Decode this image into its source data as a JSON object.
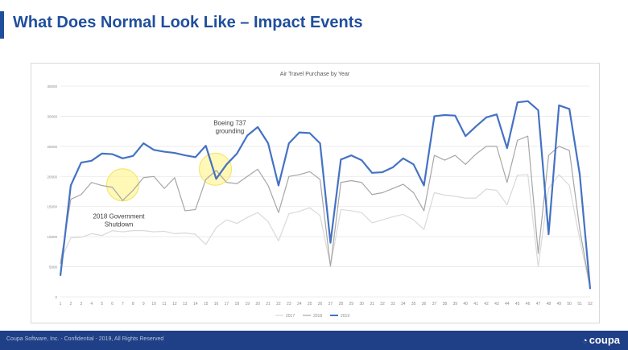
{
  "slide": {
    "title": "What Does Normal Look Like – Impact Events"
  },
  "footer": {
    "text": "Coupa Software, Inc. - Confidential - 2019, All Rights Reserved",
    "logo": "coupa"
  },
  "colors": {
    "accent": "#1f4e9c",
    "footer_bg": "#1f3f86",
    "highlight": "#fff27a"
  },
  "chart_data": {
    "type": "line",
    "title": "Air Travel Purchase by Year",
    "xlabel": "",
    "ylabel": "",
    "x": [
      1,
      2,
      3,
      4,
      5,
      6,
      7,
      8,
      9,
      10,
      11,
      12,
      13,
      14,
      15,
      16,
      17,
      18,
      19,
      20,
      21,
      22,
      23,
      24,
      25,
      26,
      27,
      28,
      29,
      30,
      31,
      32,
      33,
      34,
      35,
      36,
      37,
      38,
      39,
      40,
      41,
      42,
      43,
      44,
      45,
      46,
      47,
      48,
      49,
      50,
      51,
      52
    ],
    "ylim": [
      0,
      35000
    ],
    "yticks": [
      0,
      5000,
      10000,
      15000,
      20000,
      25000,
      30000,
      35000
    ],
    "grid": true,
    "legend": "bottom",
    "series": [
      {
        "name": "2017",
        "color": "#d9d9d9",
        "values": [
          6000,
          9800,
          9900,
          10500,
          10200,
          11000,
          10800,
          11000,
          11000,
          10800,
          10900,
          10500,
          10600,
          10400,
          8700,
          11500,
          12800,
          12200,
          13200,
          14000,
          12500,
          9300,
          13800,
          14200,
          14800,
          13500,
          5200,
          14500,
          14300,
          14000,
          12300,
          12800,
          13300,
          13700,
          12800,
          11200,
          17300,
          16900,
          16700,
          16400,
          16400,
          17900,
          17700,
          15300,
          20200,
          20300,
          5000,
          18000,
          20300,
          18500,
          9500,
          1400
        ]
      },
      {
        "name": "2018",
        "color": "#a6a6a6",
        "values": [
          5500,
          16200,
          17000,
          19000,
          18500,
          18200,
          16000,
          17700,
          19800,
          20000,
          18000,
          19800,
          14300,
          14500,
          19500,
          21000,
          19000,
          18800,
          20000,
          21200,
          18500,
          14000,
          20000,
          20300,
          20800,
          19500,
          5100,
          19000,
          19300,
          19000,
          17000,
          17300,
          18000,
          18700,
          17300,
          14300,
          23500,
          22700,
          23500,
          22000,
          23700,
          25000,
          25000,
          19000,
          26000,
          26700,
          7200,
          23500,
          25000,
          24300,
          11200,
          1500
        ]
      },
      {
        "name": "2019",
        "color": "#4472c4",
        "values": [
          3500,
          18500,
          22300,
          22600,
          23800,
          23700,
          23000,
          23400,
          25500,
          24400,
          24100,
          23900,
          23500,
          23200,
          25100,
          19600,
          22000,
          23800,
          26800,
          28200,
          25500,
          18500,
          25500,
          27300,
          27200,
          25500,
          9000,
          22800,
          23500,
          22700,
          20600,
          20700,
          21500,
          23000,
          22000,
          18500,
          30000,
          30200,
          30100,
          26700,
          28300,
          29800,
          30300,
          24700,
          32300,
          32500,
          31000,
          10400,
          31800,
          31200,
          20300,
          1300
        ]
      }
    ],
    "annotations": [
      {
        "text": "Boeing 737\ngrounding",
        "x": 16,
        "y": 19600
      },
      {
        "text": "2018 Government\nShutdown",
        "x": 7,
        "y": 17000
      }
    ]
  }
}
